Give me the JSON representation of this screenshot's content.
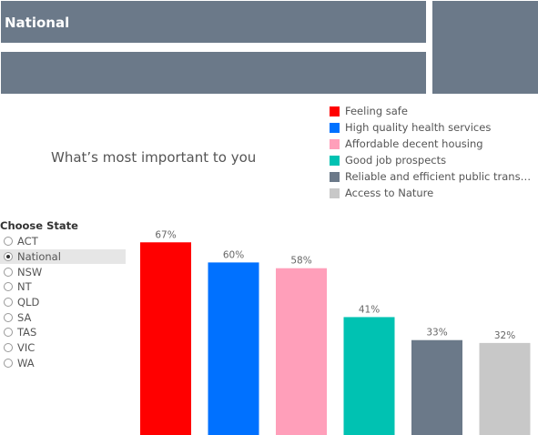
{
  "header": {
    "title": "National"
  },
  "question": "What’s most important to you",
  "legend": [
    {
      "label": "Feeling safe",
      "color": "#ff0000"
    },
    {
      "label": "High quality health services",
      "color": "#0071ff"
    },
    {
      "label": "Affordable decent housing",
      "color": "#ff9fba"
    },
    {
      "label": "Good job prospects",
      "color": "#00c2b2"
    },
    {
      "label": "Reliable and efficient public transp...",
      "color": "#6b7989"
    },
    {
      "label": "Access to Nature",
      "color": "#c8c8c8"
    }
  ],
  "filter": {
    "title": "Choose State",
    "options": [
      "ACT",
      "National",
      "NSW",
      "NT",
      "QLD",
      "SA",
      "TAS",
      "VIC",
      "WA"
    ],
    "selected": "National"
  },
  "chart_data": {
    "type": "bar",
    "categories": [
      "Feeling safe",
      "High quality health services",
      "Affordable decent housing",
      "Good job prospects",
      "Reliable and efficient public transp...",
      "Access to Nature"
    ],
    "values": [
      67,
      60,
      58,
      41,
      33,
      32
    ],
    "value_labels": [
      "67%",
      "60%",
      "58%",
      "41%",
      "33%",
      "32%"
    ],
    "colors": [
      "#ff0000",
      "#0071ff",
      "#ff9fba",
      "#00c2b2",
      "#6b7989",
      "#c8c8c8"
    ],
    "ylim": [
      0,
      100
    ],
    "grid": false,
    "legend_position": "top-right"
  }
}
